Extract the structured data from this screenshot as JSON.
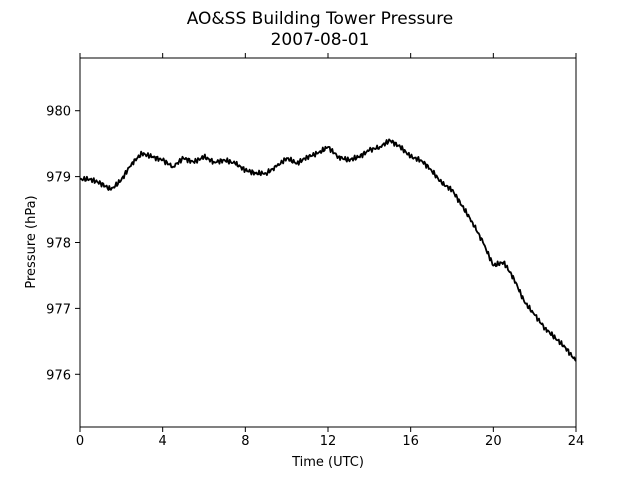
{
  "chart_data": {
    "type": "line",
    "title": "AO&SS Building Tower Pressure",
    "subtitle": "2007-08-01",
    "xlabel": "Time (UTC)",
    "ylabel": "Pressure (hPa)",
    "xlim": [
      0,
      24
    ],
    "ylim": [
      975.2,
      980.8
    ],
    "x_ticks": [
      0,
      4,
      8,
      12,
      16,
      20,
      24
    ],
    "y_ticks": [
      976,
      977,
      978,
      979,
      980
    ],
    "grid": false,
    "series": [
      {
        "color": "#000000",
        "x": [
          0,
          0.5,
          1.0,
          1.5,
          2.0,
          2.5,
          3.0,
          3.5,
          4.0,
          4.5,
          5.0,
          5.5,
          6.0,
          6.5,
          7.0,
          7.5,
          8.0,
          8.5,
          9.0,
          9.5,
          10.0,
          10.5,
          11.0,
          11.5,
          12.0,
          12.5,
          13.0,
          13.5,
          14.0,
          14.5,
          15.0,
          15.5,
          16.0,
          16.5,
          17.0,
          17.5,
          18.0,
          18.5,
          19.0,
          19.5,
          20.0,
          20.5,
          21.0,
          21.5,
          22.0,
          22.5,
          23.0,
          23.5,
          24.0
        ],
        "y": [
          978.96,
          978.96,
          978.9,
          978.8,
          978.95,
          979.2,
          979.35,
          979.3,
          979.25,
          979.15,
          979.28,
          979.22,
          979.3,
          979.22,
          979.25,
          979.2,
          979.1,
          979.05,
          979.05,
          979.15,
          979.28,
          979.2,
          979.3,
          979.35,
          979.45,
          979.3,
          979.25,
          979.3,
          979.4,
          979.45,
          979.55,
          979.45,
          979.3,
          979.25,
          979.1,
          978.9,
          978.8,
          978.55,
          978.3,
          978.0,
          977.65,
          977.7,
          977.45,
          977.1,
          976.9,
          976.7,
          976.55,
          976.4,
          976.2
        ]
      }
    ]
  }
}
